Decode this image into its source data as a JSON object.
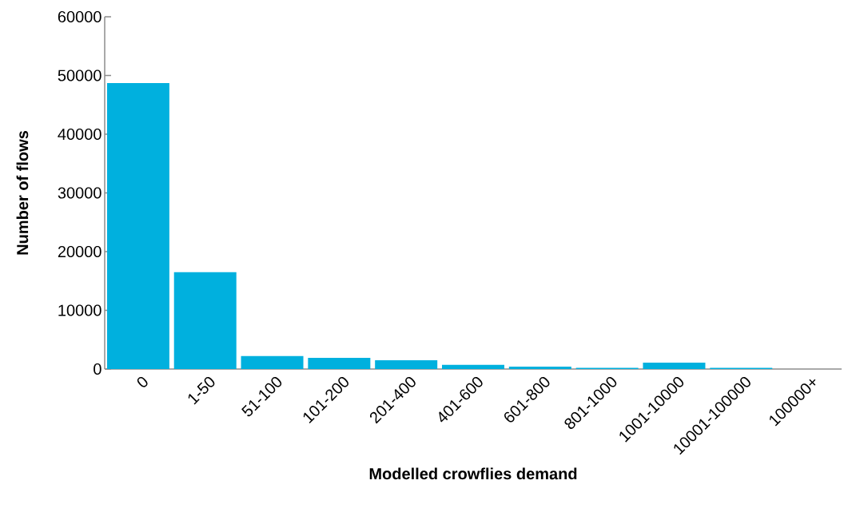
{
  "chart_data": {
    "type": "bar",
    "xlabel": "Modelled crowflies demand",
    "ylabel": "Number of flows",
    "categories": [
      "0",
      "1-50",
      "51-100",
      "101-200",
      "201-400",
      "401-600",
      "601-800",
      "801-1000",
      "1001-10000",
      "10001-100000",
      "100000+"
    ],
    "values": [
      48700,
      16500,
      2200,
      1900,
      1500,
      700,
      400,
      200,
      1100,
      200,
      0
    ],
    "color": "#00b0de",
    "ylim": [
      0,
      60000
    ],
    "yticks": [
      0,
      10000,
      20000,
      30000,
      40000,
      50000,
      60000
    ]
  }
}
